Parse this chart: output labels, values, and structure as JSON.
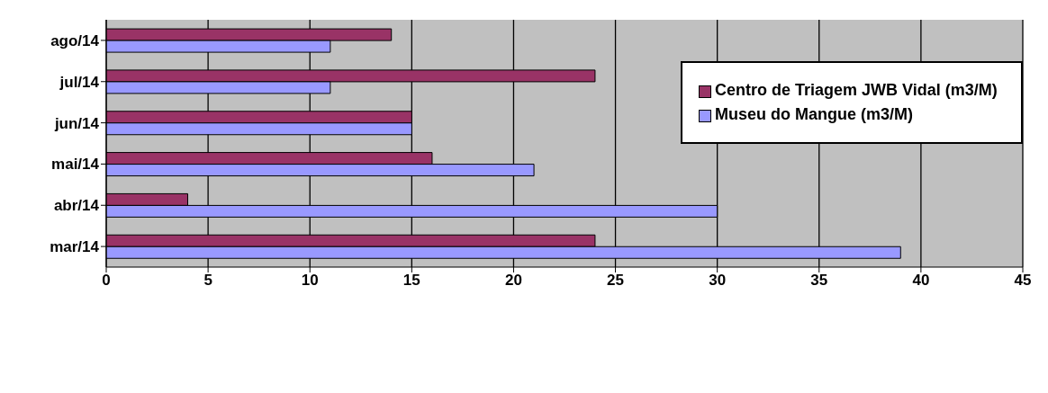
{
  "chart_data": {
    "type": "bar",
    "orientation": "horizontal",
    "categories": [
      "ago/14",
      "jul/14",
      "jun/14",
      "mai/14",
      "abr/14",
      "mar/14"
    ],
    "series": [
      {
        "name": "Centro de Triagem JWB Vidal (m3/M)",
        "color": "#993366",
        "values": [
          14,
          24,
          15,
          16,
          4,
          24
        ]
      },
      {
        "name": "Museu do Mangue (m3/M)",
        "color": "#9999ff",
        "values": [
          11,
          11,
          15,
          21,
          30,
          39
        ]
      }
    ],
    "xlim": [
      0,
      45
    ],
    "xticks": [
      0,
      5,
      10,
      15,
      20,
      25,
      30,
      35,
      40,
      45
    ],
    "grid": "x",
    "legend": "right"
  }
}
